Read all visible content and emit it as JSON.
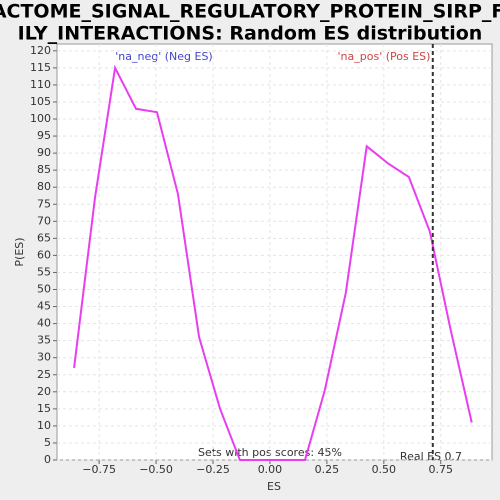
{
  "chart_data": {
    "type": "line",
    "title": [
      "REACTOME_SIGNAL_REGULATORY_PROTEIN_SIRP_FAM",
      "ILY_INTERACTIONS: Random ES distribution"
    ],
    "x_label": "ES",
    "y_label": "P(ES)",
    "x": [
      -0.86,
      -0.768,
      -0.68,
      -0.588,
      -0.496,
      -0.404,
      -0.311,
      -0.219,
      -0.132,
      -0.04,
      0.057,
      0.154,
      0.241,
      0.333,
      0.425,
      0.518,
      0.61,
      0.702,
      0.794,
      0.886
    ],
    "series": [
      {
        "name": "P(ES)",
        "color": "#e83ef0",
        "values": [
          27,
          77,
          115,
          103,
          102,
          78,
          36,
          15,
          0,
          0,
          0,
          0,
          20.5,
          49,
          92,
          87,
          83,
          67,
          38,
          11
        ]
      }
    ],
    "xlim": [
      -0.935,
      0.975
    ],
    "ylim": [
      0,
      122
    ],
    "xticks": [
      {
        "value": -0.75,
        "label": "−0.75"
      },
      {
        "value": -0.5,
        "label": "−0.50"
      },
      {
        "value": -0.25,
        "label": "−0.25"
      },
      {
        "value": 0,
        "label": "0.00"
      },
      {
        "value": 0.25,
        "label": "0.25"
      },
      {
        "value": 0.5,
        "label": "0.50"
      },
      {
        "value": 0.75,
        "label": "0.75"
      }
    ],
    "yticks": [
      0,
      5,
      10,
      15,
      20,
      25,
      30,
      35,
      40,
      45,
      50,
      55,
      60,
      65,
      70,
      75,
      80,
      85,
      90,
      95,
      100,
      105,
      110,
      115,
      120
    ],
    "grid": true,
    "real_es": 0.715,
    "annotations": {
      "neg": "'na_neg' (Neg ES)",
      "pos": "'na_pos' (Pos ES)",
      "pos_scores": "Sets with pos scores: 45%",
      "real_es": "Real ES 0.7"
    }
  }
}
